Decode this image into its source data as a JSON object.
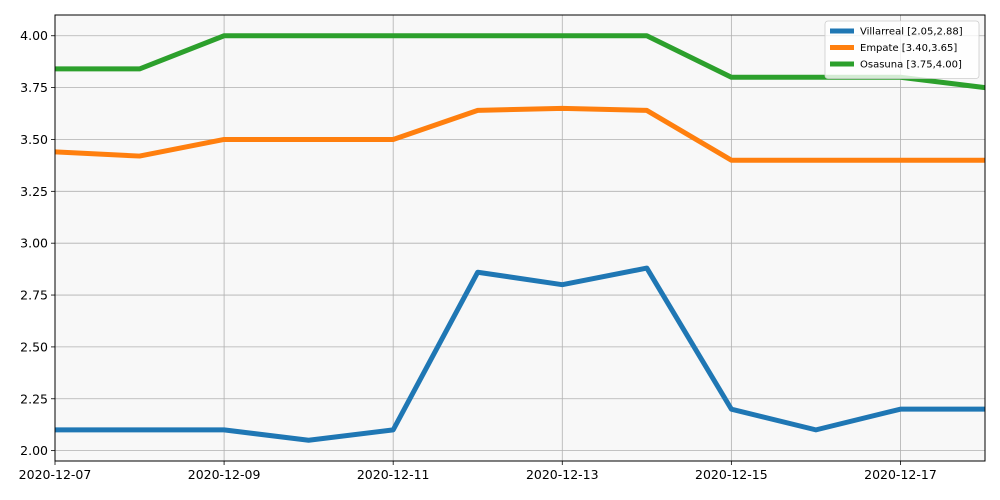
{
  "chart_data": {
    "type": "line",
    "x": [
      "2020-12-07",
      "2020-12-08",
      "2020-12-09",
      "2020-12-10",
      "2020-12-11",
      "2020-12-12",
      "2020-12-13",
      "2020-12-14",
      "2020-12-15",
      "2020-12-16",
      "2020-12-17",
      "2020-12-18"
    ],
    "x_ticks": [
      "2020-12-07",
      "2020-12-09",
      "2020-12-11",
      "2020-12-13",
      "2020-12-15",
      "2020-12-17"
    ],
    "y_ticks": [
      "2.00",
      "2.25",
      "2.50",
      "2.75",
      "3.00",
      "3.25",
      "3.50",
      "3.75",
      "4.00"
    ],
    "ylim": [
      1.95,
      4.1
    ],
    "grid": true,
    "legend_position": "top-right",
    "series": [
      {
        "name": "Villarreal [2.05,2.88]",
        "color": "#1f77b4",
        "values": [
          2.1,
          2.1,
          2.1,
          2.05,
          2.1,
          2.86,
          2.8,
          2.88,
          2.2,
          2.1,
          2.2,
          2.2
        ]
      },
      {
        "name": "Empate [3.40,3.65]",
        "color": "#ff7f0e",
        "values": [
          3.44,
          3.42,
          3.5,
          3.5,
          3.5,
          3.64,
          3.65,
          3.64,
          3.4,
          3.4,
          3.4,
          3.4
        ]
      },
      {
        "name": "Osasuna [3.75,4.00]",
        "color": "#2ca02c",
        "values": [
          3.84,
          3.84,
          4.0,
          4.0,
          4.0,
          4.0,
          4.0,
          4.0,
          3.8,
          3.8,
          3.8,
          3.75
        ]
      }
    ]
  }
}
